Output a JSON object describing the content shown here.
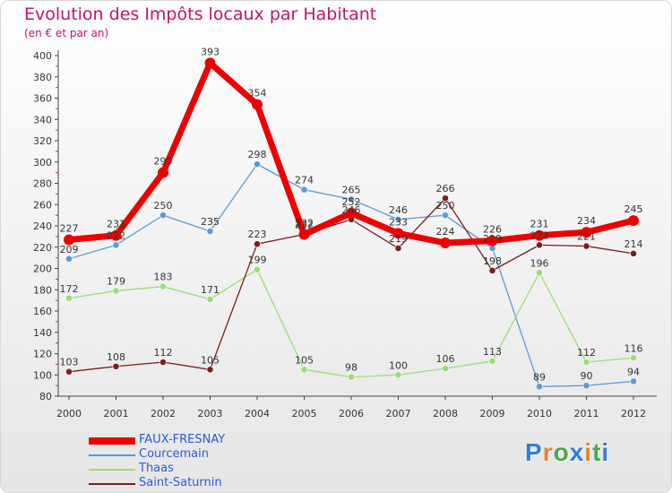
{
  "chart_data": {
    "type": "line",
    "title": "Evolution des Impôts locaux par Habitant",
    "subtitle": "(en € et par an)",
    "xlabel": "",
    "ylabel": "",
    "ylim": [
      80,
      400
    ],
    "yticks": [
      80,
      100,
      120,
      140,
      160,
      180,
      200,
      220,
      240,
      260,
      280,
      300,
      320,
      340,
      360,
      380,
      400
    ],
    "x": [
      "2000",
      "2001",
      "2002",
      "2003",
      "2004",
      "2005",
      "2006",
      "2007",
      "2008",
      "2009",
      "2010",
      "2011",
      "2012"
    ],
    "series": [
      {
        "name": "FAUX-FRESNAY",
        "color": "#ee0000",
        "emphasis": true,
        "values": [
          227,
          231,
          290,
          393,
          354,
          232,
          252,
          233,
          224,
          226,
          231,
          234,
          245
        ]
      },
      {
        "name": "Courcemain",
        "color": "#5b9bd5",
        "emphasis": false,
        "values": [
          209,
          222,
          250,
          235,
          298,
          274,
          265,
          246,
          250,
          219,
          89,
          90,
          94
        ]
      },
      {
        "name": "Thaas",
        "color": "#99dd77",
        "emphasis": false,
        "values": [
          172,
          179,
          183,
          171,
          199,
          105,
          98,
          100,
          106,
          113,
          196,
          112,
          116
        ]
      },
      {
        "name": "Saint-Saturnin",
        "color": "#7a1e1e",
        "emphasis": false,
        "values": [
          103,
          108,
          112,
          105,
          223,
          232,
          246,
          219,
          266,
          198,
          222,
          221,
          214
        ]
      }
    ],
    "data_labels": {
      "FAUX-FRESNAY": [
        "227",
        "231",
        "290",
        "393",
        "354",
        "232",
        "252",
        "233",
        "224",
        "226",
        "231",
        "234",
        "245"
      ],
      "Courcemain": [
        "209",
        "222",
        "250",
        "235",
        "298",
        "274",
        "265",
        "246",
        "250",
        "219",
        "89",
        "90",
        "94"
      ],
      "Thaas": [
        "172",
        "179",
        "183",
        "171",
        "199",
        "105",
        "98",
        "100",
        "106",
        "113",
        "196",
        "112",
        "116"
      ],
      "Saint-Saturnin": [
        "103",
        "108",
        "112",
        "105",
        "223",
        "232",
        "246",
        "219",
        "266",
        "198",
        "222",
        "221",
        "214"
      ]
    },
    "legend_position": "bottom-left",
    "grid": false
  },
  "logo": {
    "text": "Proxiti",
    "letter_colors": [
      "#2f7fd8",
      "#e8832a",
      "#4aa84a",
      "#2f7fd8",
      "#e8832a",
      "#4aa84a",
      "#2f7fd8"
    ]
  }
}
